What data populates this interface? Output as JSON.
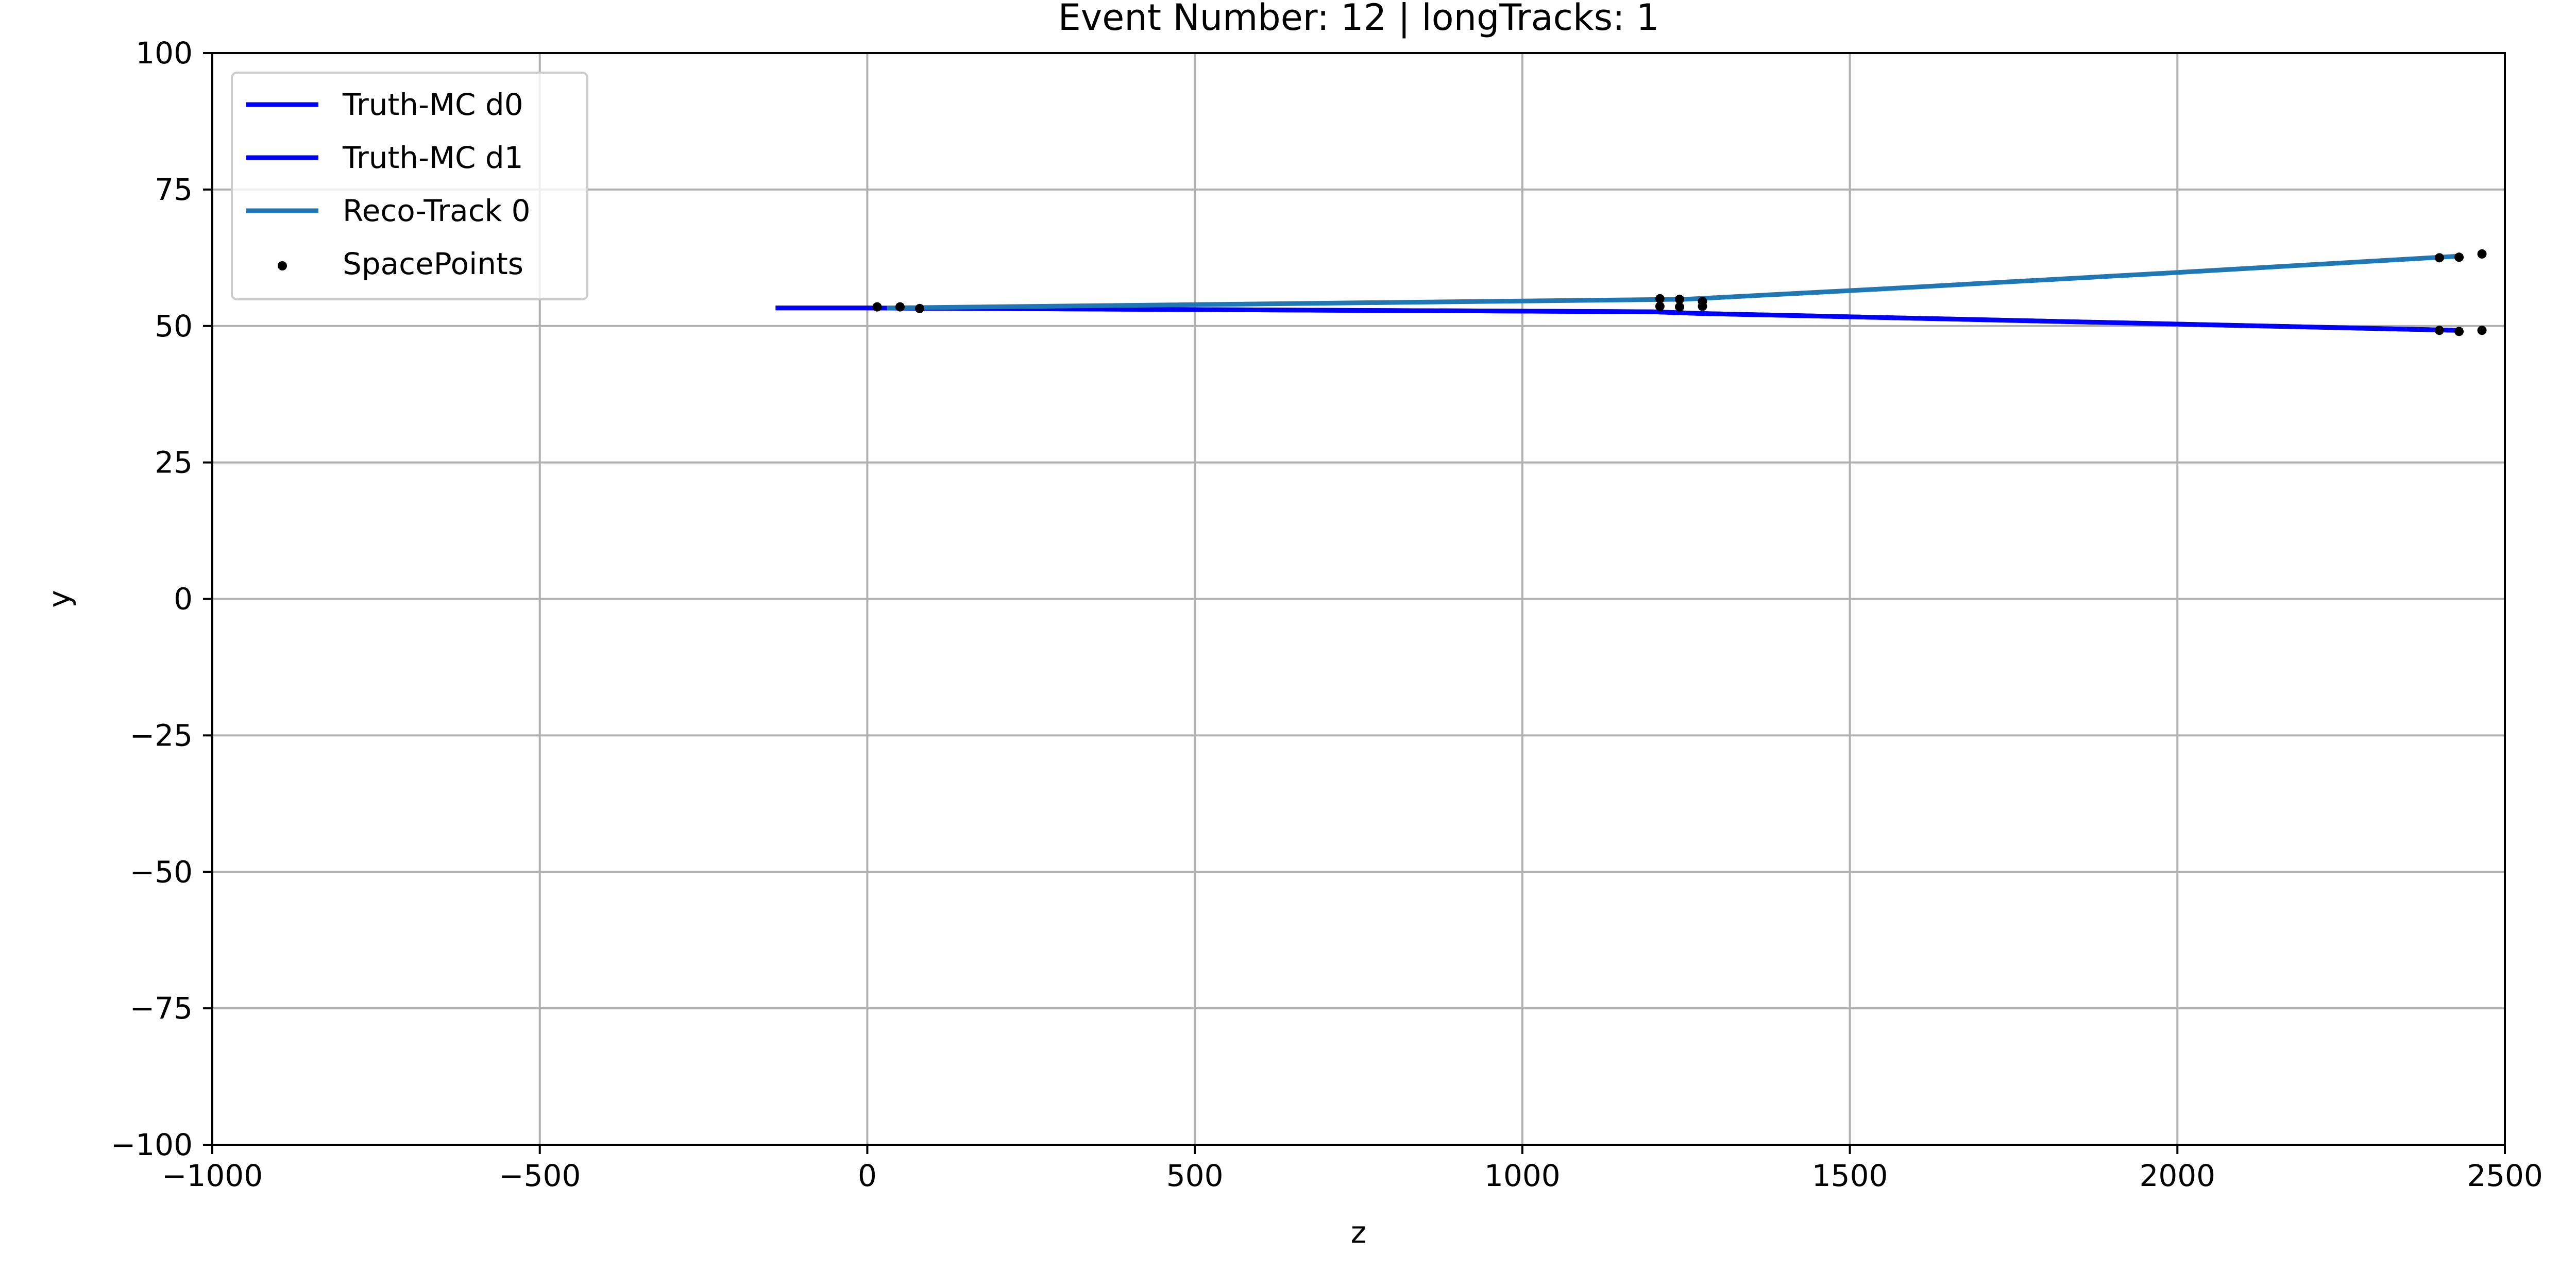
{
  "chart_data": {
    "type": "line",
    "title": "Event Number: 12 | longTracks: 1",
    "xlabel": "z",
    "ylabel": "y",
    "xlim": [
      -1000,
      2500
    ],
    "ylim": [
      -100,
      100
    ],
    "xticks": [
      -1000,
      -500,
      0,
      500,
      1000,
      1500,
      2000,
      2500
    ],
    "xtick_labels": [
      "−1000",
      "−500",
      "0",
      "500",
      "1000",
      "1500",
      "2000",
      "2500"
    ],
    "yticks": [
      -100,
      -75,
      -50,
      -25,
      0,
      25,
      50,
      75,
      100
    ],
    "ytick_labels": [
      "−100",
      "−75",
      "−50",
      "−25",
      "0",
      "25",
      "50",
      "75",
      "100"
    ],
    "grid": true,
    "legend_position": "top-left",
    "series": [
      {
        "name": "Truth-MC d0",
        "kind": "line",
        "color": "#0000ff",
        "x": [
          -140,
          0,
          1200,
          1270,
          2430
        ],
        "y": [
          53.3,
          53.3,
          52.6,
          52.3,
          49.2
        ]
      },
      {
        "name": "Truth-MC d1",
        "kind": "line",
        "color": "#0000ff",
        "x": [
          -140,
          0,
          1200,
          1270,
          2430
        ],
        "y": [
          53.3,
          53.3,
          52.6,
          52.3,
          49.2
        ]
      },
      {
        "name": "Reco-Track 0",
        "kind": "line",
        "color": "#1f77b4",
        "x": [
          30,
          1250,
          1550,
          2000,
          2430
        ],
        "y": [
          53.3,
          54.9,
          56.8,
          59.8,
          62.8
        ]
      },
      {
        "name": "SpacePoints",
        "kind": "scatter",
        "color": "#000000",
        "x": [
          15,
          50,
          80,
          1210,
          1240,
          1275,
          1210,
          1240,
          1275,
          2400,
          2430,
          2465,
          2400,
          2430,
          2465
        ],
        "y": [
          53.5,
          53.5,
          53.2,
          53.6,
          53.5,
          53.6,
          55.0,
          54.9,
          54.5,
          62.5,
          62.6,
          63.2,
          49.2,
          49.0,
          49.2
        ]
      }
    ]
  }
}
